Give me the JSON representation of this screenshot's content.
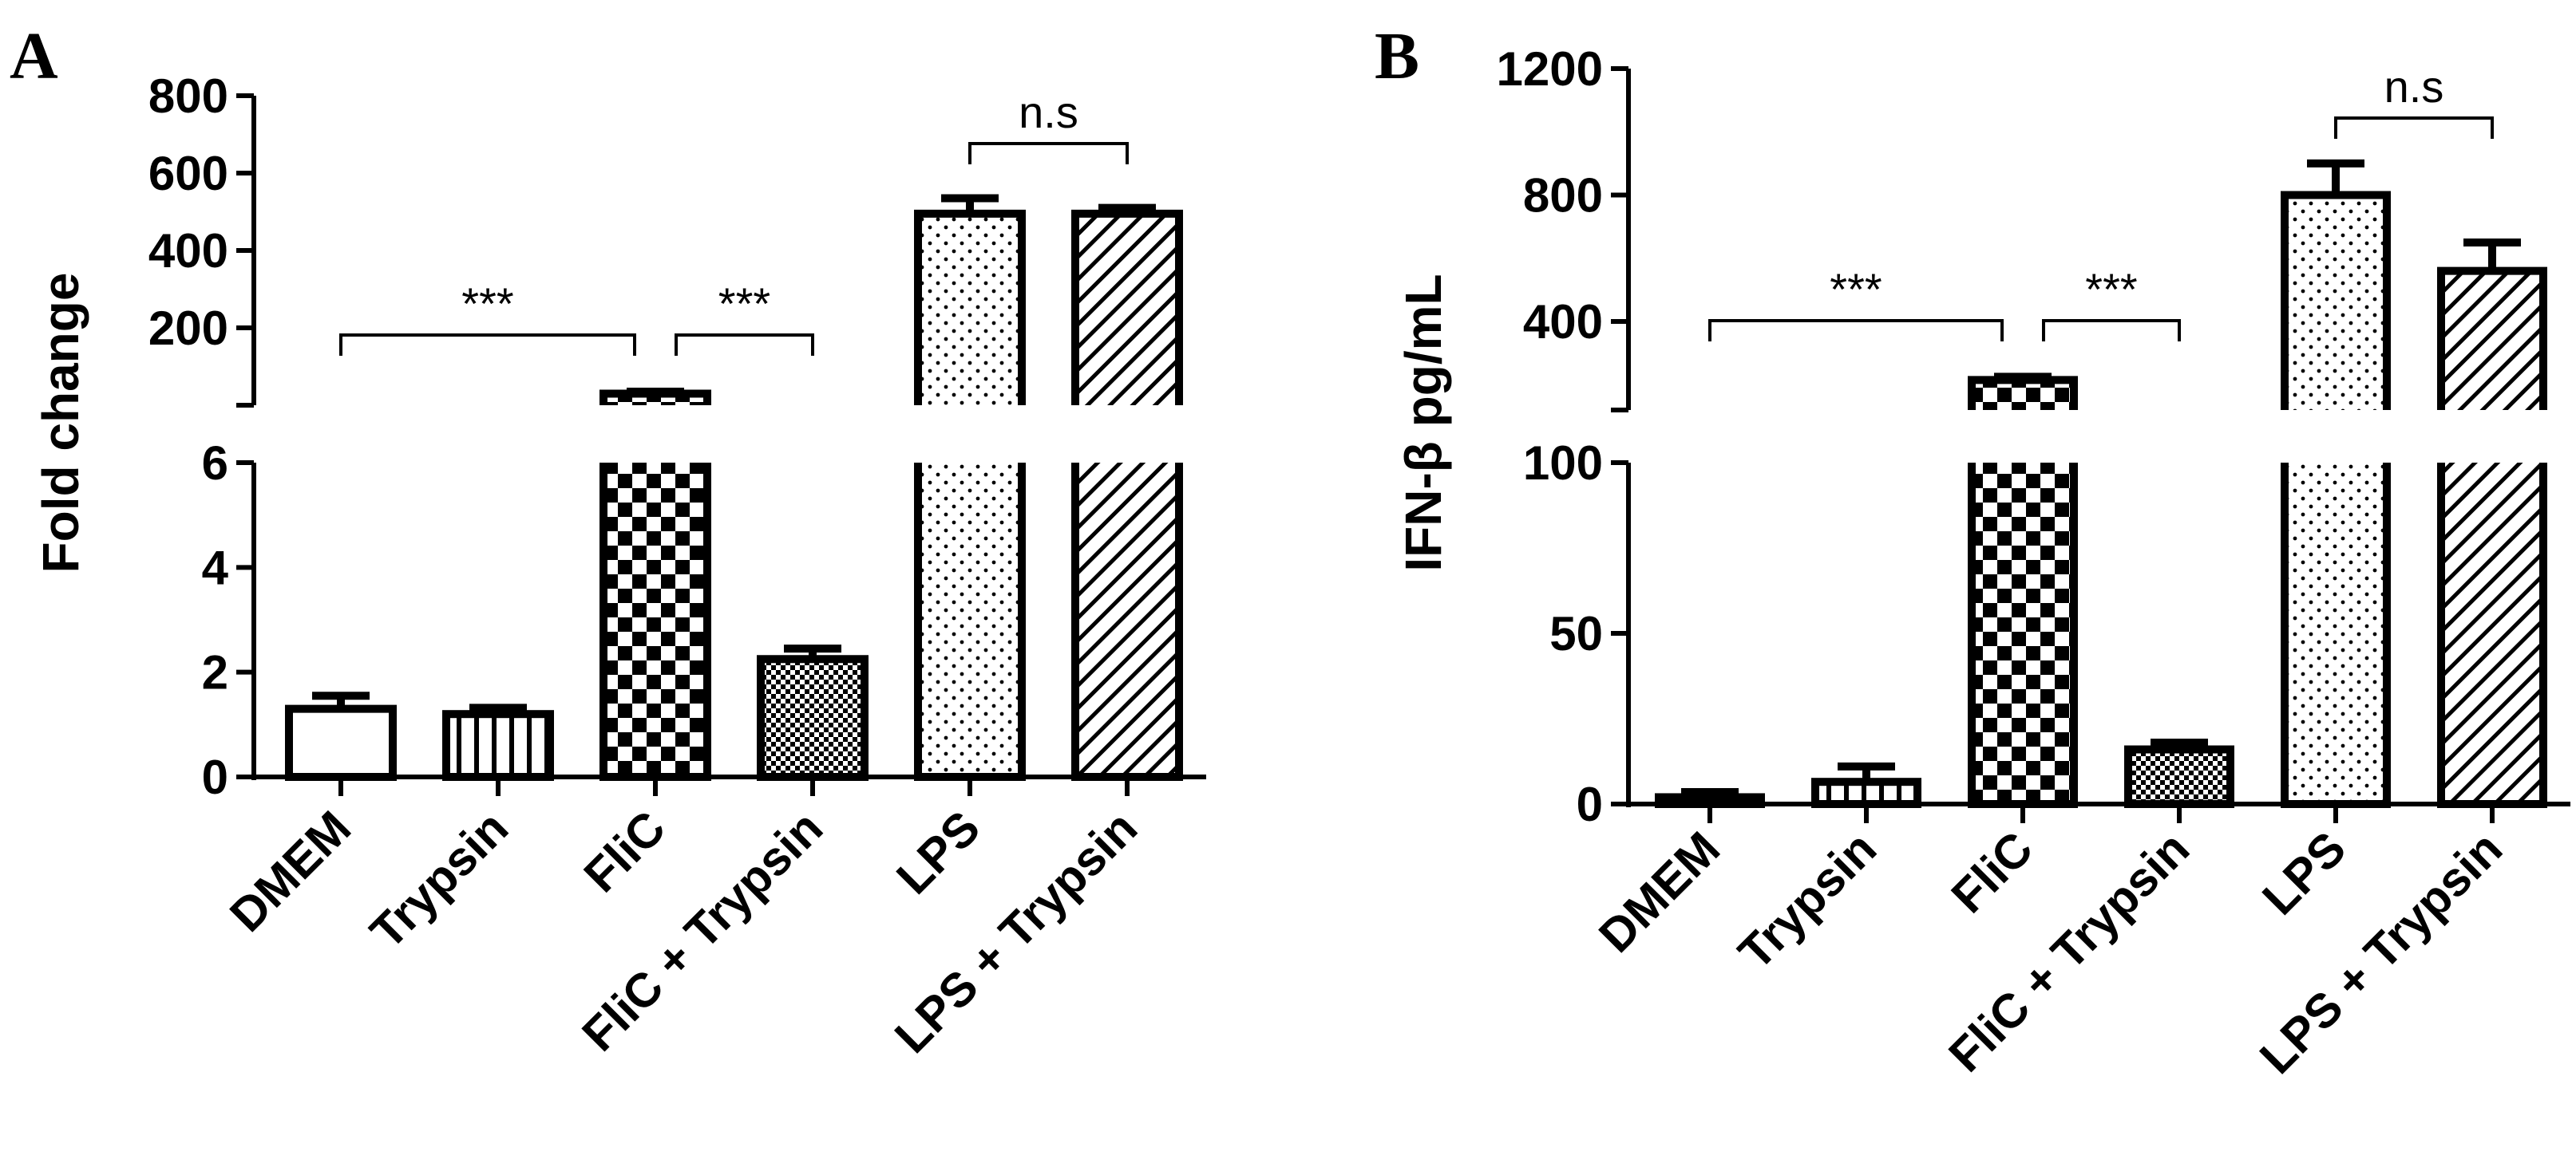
{
  "chart_data": [
    {
      "panel": "A",
      "type": "bar",
      "ylabel": "Fold change",
      "categories": [
        "DMEM",
        "Trypsin",
        "FliC",
        "FliC + Trypsin",
        "LPS",
        "LPS + Trypsin"
      ],
      "values": [
        1.3,
        1.2,
        30,
        2.25,
        495,
        495
      ],
      "errors": [
        0.25,
        0.12,
        5,
        0.2,
        40,
        15
      ],
      "patterns": [
        "blank",
        "vertical-lines",
        "checker",
        "fine-checker",
        "dots",
        "diagonal"
      ],
      "axis_break": {
        "lower": {
          "ylim": [
            0,
            6
          ],
          "ticks": [
            "0",
            "2",
            "4",
            "6"
          ]
        },
        "upper": {
          "ylim": [
            0,
            800
          ],
          "ticks": [
            "200",
            "400",
            "600",
            "800"
          ]
        }
      },
      "significance": [
        {
          "from": 0,
          "to": 2,
          "label": "***"
        },
        {
          "from": 2,
          "to": 3,
          "label": "***"
        },
        {
          "from": 4,
          "to": 5,
          "label": "n.s"
        }
      ]
    },
    {
      "panel": "B",
      "type": "bar",
      "ylabel": "IFN-β  pg/mL",
      "categories": [
        "DMEM",
        "Trypsin",
        "FliC",
        "FliC + Trypsin",
        "LPS",
        "LPS + Trypsin"
      ],
      "values": [
        2,
        6.5,
        215,
        16,
        800,
        560
      ],
      "errors": [
        1.5,
        4.5,
        10,
        2,
        100,
        90
      ],
      "patterns": [
        "blank",
        "vertical-lines",
        "checker",
        "fine-checker",
        "dots",
        "diagonal"
      ],
      "axis_break": {
        "lower": {
          "ylim": [
            0,
            100
          ],
          "ticks": [
            "0",
            "50",
            "100"
          ]
        },
        "upper": {
          "ylim": [
            120,
            1200
          ],
          "ticks": [
            "400",
            "800",
            "1200"
          ]
        }
      },
      "significance": [
        {
          "from": 0,
          "to": 2,
          "label": "***"
        },
        {
          "from": 2,
          "to": 3,
          "label": "***"
        },
        {
          "from": 4,
          "to": 5,
          "label": "n.s"
        }
      ]
    }
  ]
}
